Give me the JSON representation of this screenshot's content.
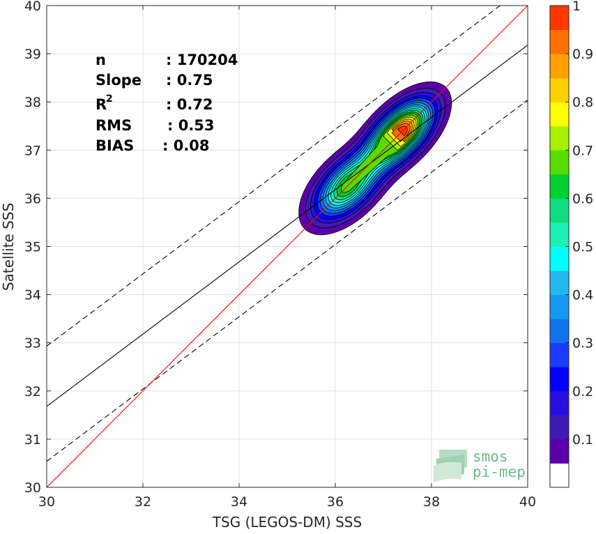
{
  "chart_data": {
    "type": "heatmap",
    "subtype": "density-contour-scatter",
    "xlabel": "TSG (LEGOS-DM) SSS",
    "ylabel": "Satellite SSS",
    "xlim": [
      30,
      40
    ],
    "ylim": [
      30,
      40
    ],
    "x_ticks": [
      30,
      32,
      34,
      36,
      38,
      40
    ],
    "y_ticks": [
      30,
      31,
      32,
      33,
      34,
      35,
      36,
      37,
      38,
      39,
      40
    ],
    "grid": true,
    "stats": {
      "n_label": "n",
      "n_value": ": 170204",
      "slope_label": "Slope",
      "slope_value": ": 0.75",
      "r2_label": "R",
      "r2_sup": "2",
      "r2_value": ": 0.72",
      "rms_label": "RMS",
      "rms_value": ": 0.53",
      "bias_label": "BIAS",
      "bias_value": ": 0.08"
    },
    "lines": {
      "identity": {
        "slope": 1,
        "intercept": 0,
        "color": "#ff0000"
      },
      "fit": {
        "slope": 0.75,
        "intercept": 9.18,
        "color": "#000000"
      },
      "upper_dashed": {
        "slope": 0.75,
        "intercept": 10.43,
        "color": "#000000"
      },
      "lower_dashed": {
        "slope": 0.75,
        "intercept": 8.04,
        "color": "#000000"
      }
    },
    "density_peaks": [
      {
        "x": 37.35,
        "y": 37.35,
        "value": 1.0
      },
      {
        "x": 36.25,
        "y": 36.25,
        "value": 0.67
      }
    ],
    "colorbar": {
      "ticks": [
        0.1,
        0.2,
        0.3,
        0.4,
        0.5,
        0.6,
        0.7,
        0.8,
        0.9,
        1
      ],
      "tick_labels": [
        "0.1",
        "0.2",
        "0.3",
        "0.4",
        "0.5",
        "0.6",
        "0.7",
        "0.8",
        "0.9",
        "1"
      ],
      "levels": [
        0,
        0.05,
        0.1,
        0.15,
        0.2,
        0.25,
        0.3,
        0.35,
        0.4,
        0.45,
        0.5,
        0.55,
        0.6,
        0.65,
        0.7,
        0.75,
        0.8,
        0.85,
        0.9,
        0.95,
        1.0
      ],
      "colors": [
        "#ffffff",
        "#5a00aa",
        "#3f1bb5",
        "#2a0de0",
        "#0000ff",
        "#1a3cff",
        "#0f74ee",
        "#1399f2",
        "#22b8ee",
        "#00ffff",
        "#1cf0b3",
        "#10dd80",
        "#00d030",
        "#55dd00",
        "#a8f000",
        "#ffff00",
        "#ffd000",
        "#ffa000",
        "#ff7000",
        "#ff3800",
        "#ff0000",
        "#e01010",
        "#c00010",
        "#800000"
      ]
    }
  },
  "logo": {
    "line1": "smos",
    "line2": "pi-mep"
  }
}
